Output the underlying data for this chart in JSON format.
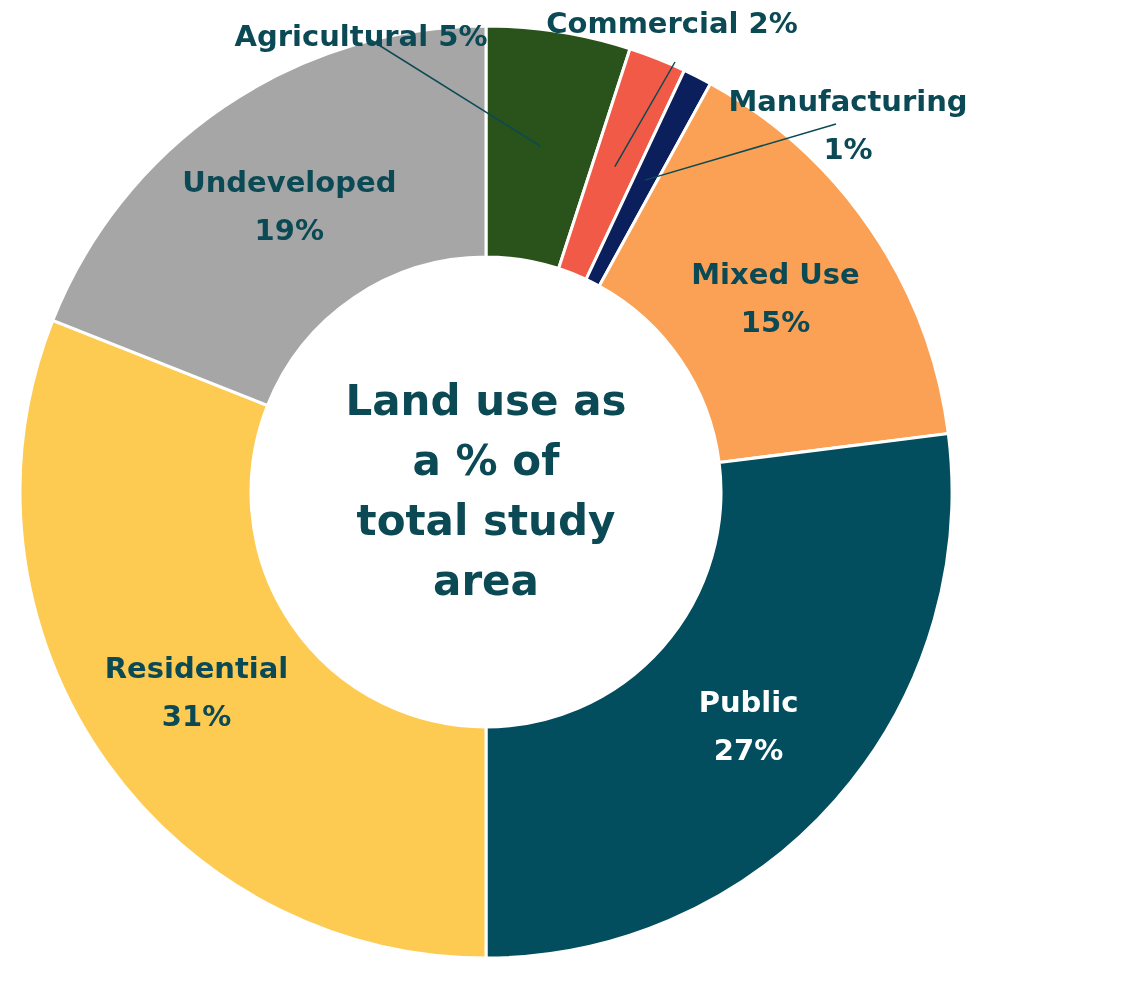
{
  "chart_data": {
    "type": "donut",
    "title": "Land use as a % of total study area",
    "categories": [
      "Agricultural",
      "Commercial",
      "Manufacturing",
      "Mixed Use",
      "Public",
      "Residential",
      "Undeveloped"
    ],
    "values": [
      5,
      2,
      1,
      15,
      27,
      31,
      19
    ],
    "value_labels": [
      "5%",
      "2%",
      "1%",
      "15%",
      "27%",
      "31%",
      "19%"
    ],
    "colors": [
      "#29531a",
      "#f05a46",
      "#0a1f5c",
      "#fba155",
      "#024e5f",
      "#fecb52",
      "#a6a6a6"
    ]
  }
}
